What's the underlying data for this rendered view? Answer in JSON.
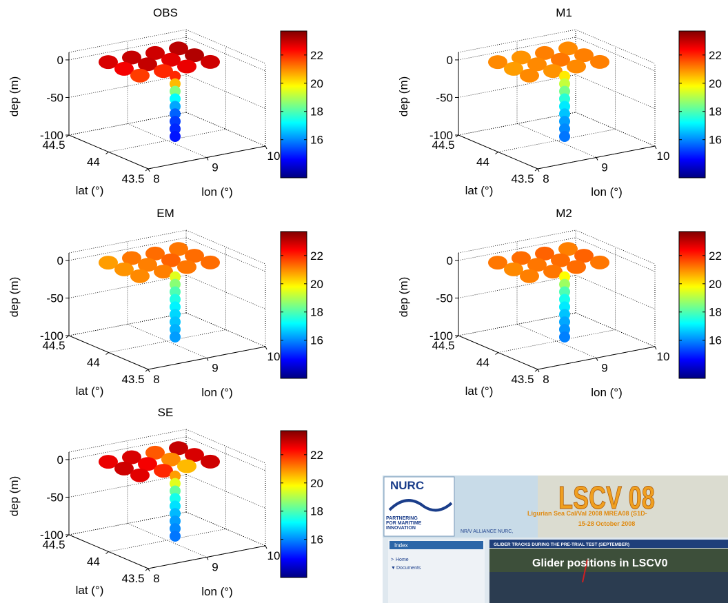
{
  "chart_data": [
    {
      "type": "scatter3d",
      "title": "OBS",
      "xlabel": "lon (°)",
      "ylabel": "lat (°)",
      "zlabel": "dep (m)",
      "xlim": [
        8,
        10
      ],
      "ylim": [
        43.5,
        44.5
      ],
      "zlim": [
        -100,
        10
      ],
      "xticks": [
        8,
        9,
        10
      ],
      "yticks": [
        43.5,
        44,
        44.5
      ],
      "zticks": [
        -100,
        -50,
        0
      ],
      "clim": [
        13.3,
        23.7
      ],
      "cticks": [
        16,
        18,
        20,
        22
      ],
      "colormap": "jet",
      "grid": true,
      "x": [
        8.4,
        8.8,
        9.2,
        9.6,
        8.4,
        8.8,
        9.2,
        9.6,
        8.4,
        8.8,
        9.2,
        9.6,
        9,
        9,
        9,
        9,
        9,
        9,
        9,
        9,
        9
      ],
      "y": [
        44.3,
        44.3,
        44.3,
        44.3,
        44.1,
        44.1,
        44.1,
        44.1,
        43.9,
        43.9,
        43.9,
        43.9,
        43.9,
        43.9,
        43.9,
        43.9,
        43.9,
        43.9,
        43.9,
        43.9,
        43.9
      ],
      "z": [
        0,
        0,
        0,
        0,
        0,
        0,
        0,
        0,
        0,
        0,
        0,
        0,
        -10,
        -20,
        -30,
        -40,
        -50,
        -60,
        -70,
        -80,
        -90
      ],
      "values": [
        22.8,
        23,
        22.9,
        23.1,
        22.5,
        23,
        22.7,
        23.2,
        21.8,
        22,
        22.6,
        22.9,
        22,
        20.5,
        18.5,
        17.2,
        16.3,
        15.6,
        15.2,
        15,
        14.8
      ]
    },
    {
      "type": "scatter3d",
      "title": "M1",
      "xlabel": "lon (°)",
      "ylabel": "lat (°)",
      "zlabel": "dep (m)",
      "xlim": [
        8,
        10
      ],
      "ylim": [
        43.5,
        44.5
      ],
      "zlim": [
        -100,
        10
      ],
      "xticks": [
        8,
        9,
        10
      ],
      "yticks": [
        43.5,
        44,
        44.5
      ],
      "zticks": [
        -100,
        -50,
        0
      ],
      "clim": [
        13.3,
        23.7
      ],
      "cticks": [
        16,
        18,
        20,
        22
      ],
      "colormap": "jet",
      "grid": true,
      "x": [
        8.4,
        8.8,
        9.2,
        9.6,
        8.4,
        8.8,
        9.2,
        9.6,
        8.4,
        8.8,
        9.2,
        9.6,
        9,
        9,
        9,
        9,
        9,
        9,
        9,
        9,
        9
      ],
      "y": [
        44.3,
        44.3,
        44.3,
        44.3,
        44.1,
        44.1,
        44.1,
        44.1,
        43.9,
        43.9,
        43.9,
        43.9,
        43.9,
        43.9,
        43.9,
        43.9,
        43.9,
        43.9,
        43.9,
        43.9,
        43.9
      ],
      "z": [
        0,
        0,
        0,
        0,
        0,
        0,
        0,
        0,
        0,
        0,
        0,
        0,
        -10,
        -20,
        -30,
        -40,
        -50,
        -60,
        -70,
        -80,
        -90
      ],
      "values": [
        21,
        20.9,
        21.1,
        21,
        20.8,
        21,
        21.2,
        21.1,
        21,
        20.9,
        21,
        21.1,
        20,
        19.2,
        18.4,
        17.6,
        17,
        16.6,
        16.2,
        16,
        15.8
      ]
    },
    {
      "type": "scatter3d",
      "title": "EM",
      "xlabel": "lon (°)",
      "ylabel": "lat (°)",
      "zlabel": "dep (m)",
      "xlim": [
        8,
        10
      ],
      "ylim": [
        43.5,
        44.5
      ],
      "zlim": [
        -100,
        10
      ],
      "xticks": [
        8,
        9,
        10
      ],
      "yticks": [
        43.5,
        44,
        44.5
      ],
      "zticks": [
        -100,
        -50,
        0
      ],
      "clim": [
        13.3,
        23.7
      ],
      "cticks": [
        16,
        18,
        20,
        22
      ],
      "colormap": "jet",
      "grid": true,
      "x": [
        8.4,
        8.8,
        9.2,
        9.6,
        8.4,
        8.8,
        9.2,
        9.6,
        8.4,
        8.8,
        9.2,
        9.6,
        9,
        9,
        9,
        9,
        9,
        9,
        9,
        9,
        9
      ],
      "y": [
        44.3,
        44.3,
        44.3,
        44.3,
        44.1,
        44.1,
        44.1,
        44.1,
        43.9,
        43.9,
        43.9,
        43.9,
        43.9,
        43.9,
        43.9,
        43.9,
        43.9,
        43.9,
        43.9,
        43.9,
        43.9
      ],
      "z": [
        0,
        0,
        0,
        0,
        0,
        0,
        0,
        0,
        0,
        0,
        0,
        0,
        -10,
        -20,
        -30,
        -40,
        -50,
        -60,
        -70,
        -80,
        -90
      ],
      "values": [
        20.8,
        21.2,
        21.3,
        21.2,
        20.9,
        21.1,
        21.4,
        21.3,
        21,
        21.1,
        21.2,
        21.3,
        19.5,
        18.6,
        18,
        17.5,
        17.1,
        16.8,
        16.6,
        16.4,
        16.2
      ]
    },
    {
      "type": "scatter3d",
      "title": "M2",
      "xlabel": "lon (°)",
      "ylabel": "lat (°)",
      "zlabel": "dep (m)",
      "xlim": [
        8,
        10
      ],
      "ylim": [
        43.5,
        44.5
      ],
      "zlim": [
        -100,
        10
      ],
      "xticks": [
        8,
        9,
        10
      ],
      "yticks": [
        43.5,
        44,
        44.5
      ],
      "zticks": [
        -100,
        -50,
        0
      ],
      "clim": [
        13.3,
        23.7
      ],
      "cticks": [
        16,
        18,
        20,
        22
      ],
      "colormap": "jet",
      "grid": true,
      "x": [
        8.4,
        8.8,
        9.2,
        9.6,
        8.4,
        8.8,
        9.2,
        9.6,
        8.4,
        8.8,
        9.2,
        9.6,
        9,
        9,
        9,
        9,
        9,
        9,
        9,
        9,
        9
      ],
      "y": [
        44.3,
        44.3,
        44.3,
        44.3,
        44.1,
        44.1,
        44.1,
        44.1,
        43.9,
        43.9,
        43.9,
        43.9,
        43.9,
        43.9,
        43.9,
        43.9,
        43.9,
        43.9,
        43.9,
        43.9,
        43.9
      ],
      "z": [
        0,
        0,
        0,
        0,
        0,
        0,
        0,
        0,
        0,
        0,
        0,
        0,
        -10,
        -20,
        -30,
        -40,
        -50,
        -60,
        -70,
        -80,
        -90
      ],
      "values": [
        21.2,
        21.3,
        21.4,
        21.1,
        21,
        21.2,
        21.3,
        21.4,
        21.1,
        21.2,
        21.3,
        21.2,
        19.8,
        18.8,
        18,
        17.4,
        17,
        16.6,
        16.3,
        16.1,
        15.9
      ]
    },
    {
      "type": "scatter3d",
      "title": "SE",
      "xlabel": "lon (°)",
      "ylabel": "lat (°)",
      "zlabel": "dep (m)",
      "xlim": [
        8,
        10
      ],
      "ylim": [
        43.5,
        44.5
      ],
      "zlim": [
        -100,
        10
      ],
      "xticks": [
        8,
        9,
        10
      ],
      "yticks": [
        43.5,
        44,
        44.5
      ],
      "zticks": [
        -100,
        -50,
        0
      ],
      "clim": [
        13.3,
        23.7
      ],
      "cticks": [
        16,
        18,
        20,
        22
      ],
      "colormap": "jet",
      "grid": true,
      "x": [
        8.4,
        8.8,
        9.2,
        9.6,
        8.4,
        8.8,
        9.2,
        9.6,
        8.4,
        8.8,
        9.2,
        9.6,
        9,
        9,
        9,
        9,
        9,
        9,
        9,
        9,
        9
      ],
      "y": [
        44.3,
        44.3,
        44.3,
        44.3,
        44.1,
        44.1,
        44.1,
        44.1,
        43.9,
        43.9,
        43.9,
        43.9,
        43.9,
        43.9,
        43.9,
        43.9,
        43.9,
        43.9,
        43.9,
        43.9,
        43.9
      ],
      "z": [
        0,
        0,
        0,
        0,
        0,
        0,
        0,
        0,
        0,
        0,
        0,
        0,
        -10,
        -20,
        -30,
        -40,
        -50,
        -60,
        -70,
        -80,
        -90
      ],
      "values": [
        22.6,
        22.8,
        21.5,
        23,
        22.9,
        22.5,
        21,
        22.8,
        22.7,
        22,
        20.5,
        22.9,
        20.8,
        19.5,
        18.2,
        17.4,
        16.9,
        16.5,
        16.2,
        16,
        15.8
      ]
    }
  ],
  "inset": {
    "logo": "NURC",
    "tagline": [
      "PARTNERING",
      "FOR MARITIME",
      "INNOVATION"
    ],
    "banner": "LSCV 08",
    "subtitle": "Ligurian Sea Cal/Val 2008 MREA08 (S1D-",
    "dates": "15-28 October 2008",
    "ship": "NR/V ALLIANCE NURC,",
    "nav_title": "Index",
    "nav": [
      "Home",
      "Documents"
    ],
    "section": "GLIDER TRACKS DURING THE PRE-TRIAL TEST (SEPTEMBER)",
    "image_caption": "Glider positions in LSCV0"
  }
}
